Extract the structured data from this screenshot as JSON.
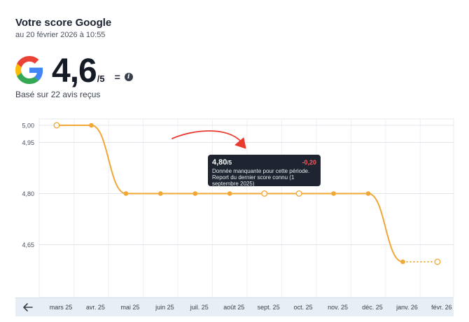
{
  "header": {
    "title": "Votre score Google",
    "timestamp": "au 20 février 2026 à 10:55"
  },
  "score": {
    "value": "4,6",
    "max": "/5",
    "trend": "=",
    "based_on": "Basé sur 22 avis reçus"
  },
  "tooltip": {
    "value": "4,80",
    "max": "/5",
    "delta": "-0,20",
    "note": "Donnée manquante pour cette période. Report du dernier score connu (1 septembre 2025)"
  },
  "chart_data": {
    "type": "line",
    "categories": [
      "mars 25",
      "avr. 25",
      "mai 25",
      "juin 25",
      "juil. 25",
      "août 25",
      "sept. 25",
      "oct. 25",
      "nov. 25",
      "déc. 25",
      "janv. 26",
      "févr. 26"
    ],
    "y_ticks": [
      "5,00",
      "4,95",
      "4,80",
      "4,65"
    ],
    "ylim": [
      4.6,
      5.0
    ],
    "series": [
      {
        "values": [
          5.0,
          5.0,
          4.8,
          4.8,
          4.8,
          4.8,
          4.8,
          4.8,
          4.8,
          4.8,
          4.6,
          4.6
        ],
        "estimated": [
          true,
          false,
          false,
          false,
          false,
          false,
          true,
          true,
          false,
          false,
          false,
          true
        ]
      }
    ],
    "color": "#f0a736",
    "grid": true
  },
  "colors": {
    "accent": "#f0a736",
    "tooltip_bg": "#1e2530",
    "delta_negative": "#ff5a5f",
    "axis_bar": "#e8eef6"
  },
  "icons": {
    "logo": "google-g-icon",
    "info": "info-icon",
    "back": "arrow-left-icon"
  }
}
